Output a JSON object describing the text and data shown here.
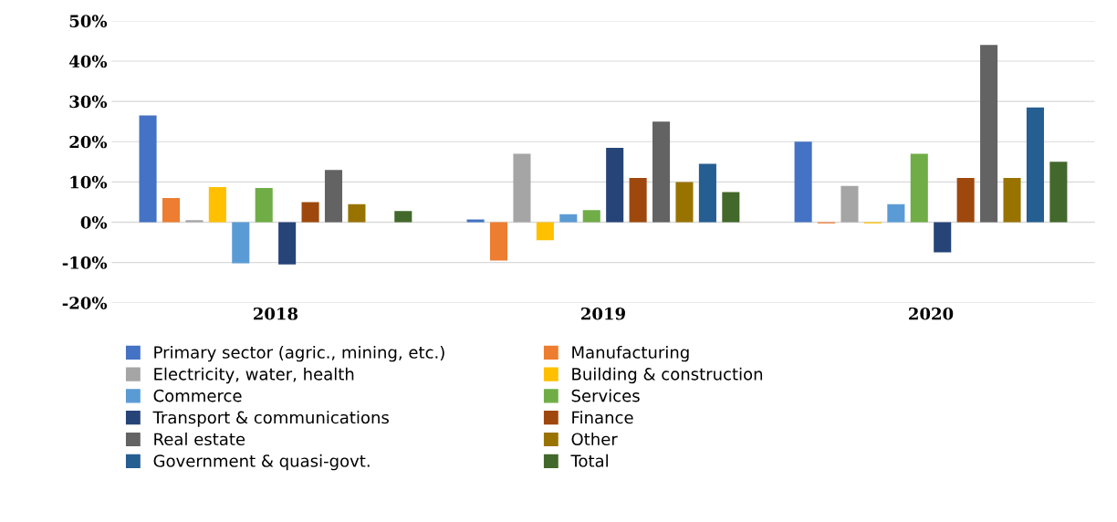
{
  "chart_data": {
    "type": "bar",
    "categories": [
      "2018",
      "2019",
      "2020"
    ],
    "ylim": [
      -20,
      50
    ],
    "yticks": [
      {
        "value": -20,
        "label": "-20%"
      },
      {
        "value": -10,
        "label": "-10%"
      },
      {
        "value": 0,
        "label": "0%"
      },
      {
        "value": 10,
        "label": "10%"
      },
      {
        "value": 20,
        "label": "20%"
      },
      {
        "value": 30,
        "label": "30%"
      },
      {
        "value": 40,
        "label": "40%"
      },
      {
        "value": 50,
        "label": "50%"
      }
    ],
    "grid": "y",
    "legend": "bottom",
    "series": [
      {
        "name": "Primary sector (agric., mining, etc.)",
        "color": "#4472c4",
        "values": [
          26.5,
          0.7,
          20
        ]
      },
      {
        "name": "Manufacturing",
        "color": "#ed7d31",
        "values": [
          6,
          -9.5,
          -0.3
        ]
      },
      {
        "name": "Electricity, water, health",
        "color": "#a5a5a5",
        "values": [
          0.5,
          17,
          9
        ]
      },
      {
        "name": "Building & construction",
        "color": "#ffc000",
        "values": [
          8.7,
          -4.5,
          -0.3
        ]
      },
      {
        "name": "Commerce",
        "color": "#5b9bd5",
        "values": [
          -10.2,
          2,
          4.5
        ]
      },
      {
        "name": "Services",
        "color": "#70ad47",
        "values": [
          8.5,
          3,
          17
        ]
      },
      {
        "name": "Transport & communications",
        "color": "#264478",
        "values": [
          -10.5,
          18.5,
          -7.5
        ]
      },
      {
        "name": "Finance",
        "color": "#9e480e",
        "values": [
          5,
          11,
          11
        ]
      },
      {
        "name": "Real estate",
        "color": "#636363",
        "values": [
          13,
          25,
          44
        ]
      },
      {
        "name": "Other",
        "color": "#997300",
        "values": [
          4.5,
          10,
          11
        ]
      },
      {
        "name": "Government & quasi-govt.",
        "color": "#255e91",
        "values": [
          0,
          14.5,
          28.5
        ]
      },
      {
        "name": "Total",
        "color": "#43682b",
        "values": [
          2.8,
          7.5,
          15
        ]
      }
    ]
  }
}
